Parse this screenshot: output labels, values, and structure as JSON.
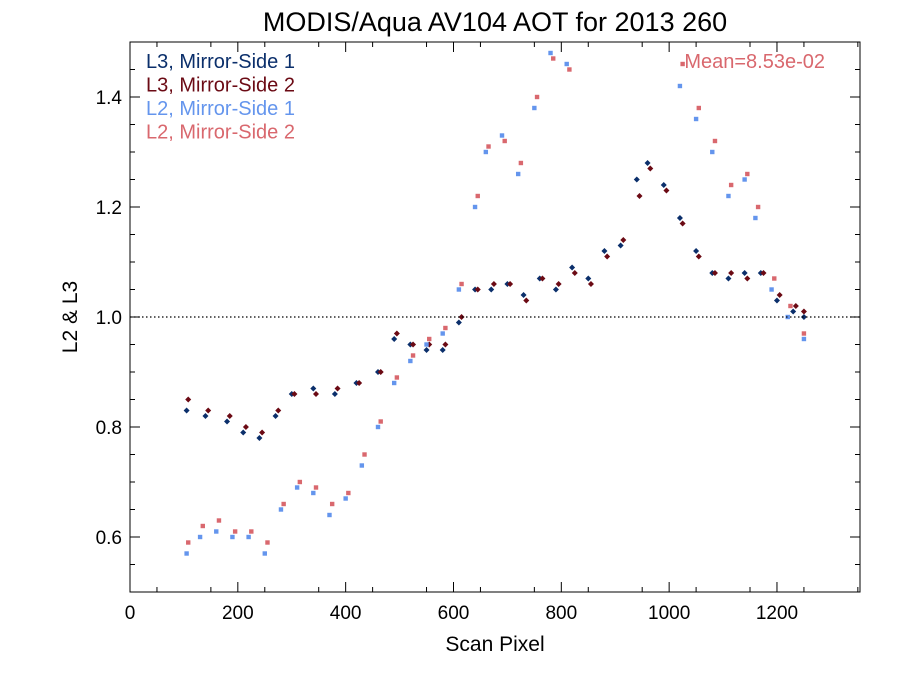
{
  "chart_data": {
    "type": "scatter",
    "title": "MODIS/Aqua AV104 AOT for 2013 260",
    "xlabel": "Scan Pixel",
    "ylabel": "L2 & L3",
    "xlim": [
      0,
      1354
    ],
    "ylim": [
      0.5,
      1.5
    ],
    "x_ticks": [
      0,
      200,
      400,
      600,
      800,
      1000,
      1200
    ],
    "y_ticks": [
      0.6,
      0.8,
      1.0,
      1.2,
      1.4
    ],
    "x_tick_labels": [
      "0",
      "200",
      "400",
      "600",
      "800",
      "1000",
      "1200"
    ],
    "y_tick_labels": [
      "0.6",
      "0.8",
      "1.0",
      "1.2",
      "1.4"
    ],
    "reference_line": {
      "y": 1.0,
      "style": "dotted"
    },
    "annotation": "Mean=8.53e-02",
    "legend_position": "top-left",
    "grid": false,
    "series": [
      {
        "name": "L3, Mirror-Side 1",
        "color": "#0b2f6b",
        "marker": "diamond",
        "x": [
          105,
          140,
          180,
          210,
          240,
          270,
          300,
          340,
          380,
          420,
          460,
          490,
          520,
          550,
          580,
          610,
          640,
          670,
          700,
          730,
          760,
          790,
          820,
          850,
          880,
          910,
          940,
          960,
          990,
          1020,
          1050,
          1080,
          1110,
          1140,
          1170,
          1200,
          1230,
          1250
        ],
        "y": [
          0.83,
          0.82,
          0.81,
          0.79,
          0.78,
          0.82,
          0.86,
          0.87,
          0.86,
          0.88,
          0.9,
          0.96,
          0.95,
          0.94,
          0.94,
          0.99,
          1.05,
          1.05,
          1.06,
          1.04,
          1.07,
          1.05,
          1.09,
          1.07,
          1.12,
          1.13,
          1.25,
          1.28,
          1.24,
          1.18,
          1.12,
          1.08,
          1.07,
          1.08,
          1.08,
          1.03,
          1.01,
          1.0
        ]
      },
      {
        "name": "L3, Mirror-Side 2",
        "color": "#6b0a14",
        "marker": "diamond",
        "x": [
          108,
          145,
          185,
          215,
          245,
          275,
          305,
          345,
          385,
          425,
          465,
          495,
          525,
          555,
          585,
          615,
          645,
          675,
          705,
          735,
          765,
          795,
          825,
          855,
          885,
          915,
          945,
          965,
          995,
          1025,
          1055,
          1085,
          1115,
          1145,
          1175,
          1205,
          1235,
          1250
        ],
        "y": [
          0.85,
          0.83,
          0.82,
          0.8,
          0.79,
          0.83,
          0.86,
          0.86,
          0.87,
          0.88,
          0.9,
          0.97,
          0.95,
          0.95,
          0.95,
          1.0,
          1.05,
          1.06,
          1.06,
          1.03,
          1.07,
          1.06,
          1.08,
          1.06,
          1.11,
          1.14,
          1.22,
          1.27,
          1.23,
          1.17,
          1.11,
          1.08,
          1.08,
          1.07,
          1.08,
          1.04,
          1.02,
          1.01
        ]
      },
      {
        "name": "L2, Mirror-Side 1",
        "color": "#6495ed",
        "marker": "square",
        "x": [
          105,
          130,
          160,
          190,
          220,
          250,
          280,
          310,
          340,
          370,
          400,
          430,
          460,
          490,
          520,
          550,
          580,
          610,
          640,
          660,
          690,
          720,
          750,
          780,
          810,
          1020,
          1050,
          1080,
          1110,
          1140,
          1160,
          1190,
          1220,
          1250
        ],
        "y": [
          0.57,
          0.6,
          0.61,
          0.6,
          0.6,
          0.57,
          0.65,
          0.69,
          0.68,
          0.64,
          0.67,
          0.73,
          0.8,
          0.88,
          0.92,
          0.95,
          0.97,
          1.05,
          1.2,
          1.3,
          1.33,
          1.26,
          1.38,
          1.48,
          1.46,
          1.42,
          1.36,
          1.3,
          1.22,
          1.25,
          1.18,
          1.05,
          1.0,
          0.96
        ]
      },
      {
        "name": "L2, Mirror-Side 2",
        "color": "#d9686e",
        "marker": "square",
        "x": [
          108,
          135,
          165,
          195,
          225,
          255,
          285,
          315,
          345,
          375,
          405,
          435,
          465,
          495,
          525,
          555,
          585,
          615,
          645,
          665,
          695,
          725,
          755,
          785,
          815,
          1025,
          1055,
          1085,
          1115,
          1145,
          1165,
          1195,
          1225,
          1250
        ],
        "y": [
          0.59,
          0.62,
          0.63,
          0.61,
          0.61,
          0.59,
          0.66,
          0.7,
          0.69,
          0.66,
          0.68,
          0.75,
          0.81,
          0.89,
          0.93,
          0.96,
          0.98,
          1.06,
          1.22,
          1.31,
          1.32,
          1.28,
          1.4,
          1.47,
          1.45,
          1.46,
          1.38,
          1.32,
          1.24,
          1.26,
          1.2,
          1.07,
          1.02,
          0.97
        ]
      }
    ]
  }
}
